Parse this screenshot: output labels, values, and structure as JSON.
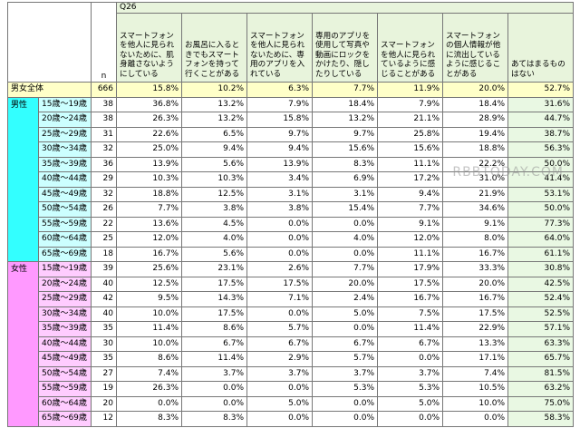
{
  "watermark": "RBBTODAY.COM",
  "table": {
    "question": "Q26",
    "n_label": "n",
    "columns": [
      "スマートフォンを他人に見られないために、肌身離さないようにしている",
      "お風呂に入るときでもスマートフォンを持って行くことがある",
      "スマートフォンを他人に見られないために、専用のアプリを入れている",
      "専用のアプリを使用して写真や動画にロックをかけたり、隠したりしている",
      "スマートフォンを他人に見られているように感じることがある",
      "スマートフォンの個人情報が他に流出しているように感じることがある",
      "あてはまるものはない"
    ],
    "total": {
      "label": "男女全体",
      "n": 666,
      "values": [
        "15.8%",
        "10.2%",
        "6.3%",
        "7.7%",
        "11.9%",
        "20.0%",
        "52.7%"
      ]
    },
    "groups": [
      {
        "label": "男性",
        "rows": [
          {
            "label": "15歳～19歳",
            "n": 38,
            "values": [
              "36.8%",
              "13.2%",
              "7.9%",
              "18.4%",
              "7.9%",
              "18.4%",
              "31.6%"
            ]
          },
          {
            "label": "20歳～24歳",
            "n": 38,
            "values": [
              "26.3%",
              "13.2%",
              "15.8%",
              "13.2%",
              "21.1%",
              "28.9%",
              "44.7%"
            ]
          },
          {
            "label": "25歳～29歳",
            "n": 31,
            "values": [
              "22.6%",
              "6.5%",
              "9.7%",
              "9.7%",
              "25.8%",
              "19.4%",
              "38.7%"
            ]
          },
          {
            "label": "30歳～34歳",
            "n": 32,
            "values": [
              "25.0%",
              "9.4%",
              "9.4%",
              "15.6%",
              "15.6%",
              "18.8%",
              "56.3%"
            ]
          },
          {
            "label": "35歳～39歳",
            "n": 36,
            "values": [
              "13.9%",
              "5.6%",
              "13.9%",
              "8.3%",
              "11.1%",
              "22.2%",
              "50.0%"
            ]
          },
          {
            "label": "40歳～44歳",
            "n": 29,
            "values": [
              "10.3%",
              "10.3%",
              "3.4%",
              "6.9%",
              "17.2%",
              "31.0%",
              "41.4%"
            ]
          },
          {
            "label": "45歳～49歳",
            "n": 32,
            "values": [
              "18.8%",
              "12.5%",
              "3.1%",
              "3.1%",
              "9.4%",
              "21.9%",
              "53.1%"
            ]
          },
          {
            "label": "50歳～54歳",
            "n": 26,
            "values": [
              "7.7%",
              "3.8%",
              "3.8%",
              "15.4%",
              "7.7%",
              "34.6%",
              "50.0%"
            ]
          },
          {
            "label": "55歳～59歳",
            "n": 22,
            "values": [
              "13.6%",
              "4.5%",
              "0.0%",
              "0.0%",
              "9.1%",
              "9.1%",
              "77.3%"
            ]
          },
          {
            "label": "60歳～64歳",
            "n": 25,
            "values": [
              "12.0%",
              "4.0%",
              "0.0%",
              "4.0%",
              "12.0%",
              "8.0%",
              "64.0%"
            ]
          },
          {
            "label": "65歳～69歳",
            "n": 18,
            "values": [
              "16.7%",
              "5.6%",
              "0.0%",
              "0.0%",
              "11.1%",
              "16.7%",
              "61.1%"
            ]
          }
        ]
      },
      {
        "label": "女性",
        "rows": [
          {
            "label": "15歳～19歳",
            "n": 39,
            "values": [
              "25.6%",
              "23.1%",
              "2.6%",
              "7.7%",
              "17.9%",
              "33.3%",
              "30.8%"
            ]
          },
          {
            "label": "20歳～24歳",
            "n": 40,
            "values": [
              "12.5%",
              "17.5%",
              "17.5%",
              "20.0%",
              "17.5%",
              "20.0%",
              "42.5%"
            ]
          },
          {
            "label": "25歳～29歳",
            "n": 42,
            "values": [
              "9.5%",
              "14.3%",
              "7.1%",
              "2.4%",
              "16.7%",
              "16.7%",
              "52.4%"
            ]
          },
          {
            "label": "30歳～34歳",
            "n": 40,
            "values": [
              "10.0%",
              "17.5%",
              "0.0%",
              "5.0%",
              "7.5%",
              "17.5%",
              "52.5%"
            ]
          },
          {
            "label": "35歳～39歳",
            "n": 35,
            "values": [
              "11.4%",
              "8.6%",
              "5.7%",
              "0.0%",
              "11.4%",
              "22.9%",
              "57.1%"
            ]
          },
          {
            "label": "40歳～44歳",
            "n": 30,
            "values": [
              "10.0%",
              "6.7%",
              "6.7%",
              "6.7%",
              "6.7%",
              "13.3%",
              "63.3%"
            ]
          },
          {
            "label": "45歳～49歳",
            "n": 35,
            "values": [
              "8.6%",
              "11.4%",
              "2.9%",
              "5.7%",
              "0.0%",
              "17.1%",
              "65.7%"
            ]
          },
          {
            "label": "50歳～54歳",
            "n": 27,
            "values": [
              "7.4%",
              "3.7%",
              "3.7%",
              "3.7%",
              "3.7%",
              "7.4%",
              "81.5%"
            ]
          },
          {
            "label": "55歳～59歳",
            "n": 19,
            "values": [
              "26.3%",
              "0.0%",
              "0.0%",
              "5.3%",
              "5.3%",
              "10.5%",
              "63.2%"
            ]
          },
          {
            "label": "60歳～64歳",
            "n": 20,
            "values": [
              "0.0%",
              "0.0%",
              "5.0%",
              "0.0%",
              "5.0%",
              "10.0%",
              "75.0%"
            ]
          },
          {
            "label": "65歳～69歳",
            "n": 12,
            "values": [
              "8.3%",
              "8.3%",
              "0.0%",
              "0.0%",
              "0.0%",
              "0.0%",
              "58.3%"
            ]
          }
        ]
      }
    ]
  }
}
